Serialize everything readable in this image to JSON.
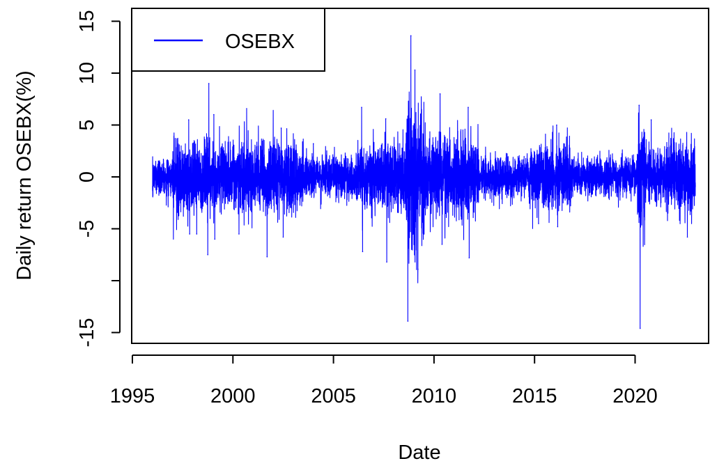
{
  "chart_data": {
    "type": "line",
    "title": "",
    "xlabel": "Date",
    "ylabel": "Daily return OSEBX(%)",
    "xlim": [
      1996.0,
      2023.0
    ],
    "ylim": [
      -15,
      15
    ],
    "x_ticks": [
      1995,
      2000,
      2005,
      2010,
      2015,
      2020
    ],
    "x_tick_labels": [
      "1995",
      "2000",
      "2005",
      "2010",
      "2015",
      "2020"
    ],
    "y_ticks": [
      -15,
      -10,
      -5,
      0,
      5,
      10,
      15
    ],
    "y_tick_labels": [
      "-15",
      "",
      "-5",
      "0",
      "5",
      "10",
      "15"
    ],
    "legend": {
      "position": "top-left",
      "entries": [
        "OSEBX"
      ]
    },
    "grid": false,
    "colors": {
      "series": "#0000ff",
      "axis": "#000000"
    },
    "series": [
      {
        "name": "OSEBX",
        "color": "#0000ff",
        "extremes": [
          {
            "x": 1997.8,
            "value": 5.5
          },
          {
            "x": 1997.85,
            "value": -5.5
          },
          {
            "x": 1998.2,
            "value": -5.5
          },
          {
            "x": 1998.75,
            "value": -7.5
          },
          {
            "x": 1998.8,
            "value": 9.0
          },
          {
            "x": 1999.05,
            "value": 6.0
          },
          {
            "x": 1999.1,
            "value": -6.0
          },
          {
            "x": 2000.3,
            "value": -5.5
          },
          {
            "x": 2001.7,
            "value": -7.7
          },
          {
            "x": 2002.4,
            "value": 4.7
          },
          {
            "x": 2002.5,
            "value": -5.8
          },
          {
            "x": 2004.0,
            "value": 3.2
          },
          {
            "x": 2006.4,
            "value": 6.7
          },
          {
            "x": 2006.45,
            "value": -7.2
          },
          {
            "x": 2007.6,
            "value": 5.6
          },
          {
            "x": 2007.65,
            "value": -8.2
          },
          {
            "x": 2008.7,
            "value": -13.9
          },
          {
            "x": 2008.85,
            "value": 13.6
          },
          {
            "x": 2009.05,
            "value": 10.3
          },
          {
            "x": 2009.2,
            "value": -8.9
          },
          {
            "x": 2010.3,
            "value": 8.0
          },
          {
            "x": 2010.4,
            "value": -6.5
          },
          {
            "x": 2011.7,
            "value": 6.7
          },
          {
            "x": 2011.75,
            "value": -7.8
          },
          {
            "x": 2015.2,
            "value": -4.5
          },
          {
            "x": 2016.1,
            "value": 5.0
          },
          {
            "x": 2016.15,
            "value": -4.8
          },
          {
            "x": 2020.2,
            "value": 6.9
          },
          {
            "x": 2020.25,
            "value": -14.6
          },
          {
            "x": 2020.8,
            "value": 5.5
          },
          {
            "x": 2022.6,
            "value": -5.8
          }
        ],
        "regimes": [
          {
            "from": 1996.0,
            "to": 1997.0,
            "volatility": 0.9
          },
          {
            "from": 1997.0,
            "to": 2001.0,
            "volatility": 1.7
          },
          {
            "from": 2001.0,
            "to": 2003.5,
            "volatility": 1.6
          },
          {
            "from": 2003.5,
            "to": 2006.3,
            "volatility": 1.0
          },
          {
            "from": 2006.3,
            "to": 2008.6,
            "volatility": 1.6
          },
          {
            "from": 2008.6,
            "to": 2009.5,
            "volatility": 3.3
          },
          {
            "from": 2009.5,
            "to": 2012.2,
            "volatility": 2.0
          },
          {
            "from": 2012.2,
            "to": 2014.8,
            "volatility": 1.0
          },
          {
            "from": 2014.8,
            "to": 2016.8,
            "volatility": 1.5
          },
          {
            "from": 2016.8,
            "to": 2020.1,
            "volatility": 0.95
          },
          {
            "from": 2020.1,
            "to": 2020.5,
            "volatility": 2.6
          },
          {
            "from": 2020.5,
            "to": 2021.5,
            "volatility": 1.3
          },
          {
            "from": 2021.5,
            "to": 2023.0,
            "volatility": 1.7
          }
        ]
      }
    ]
  }
}
